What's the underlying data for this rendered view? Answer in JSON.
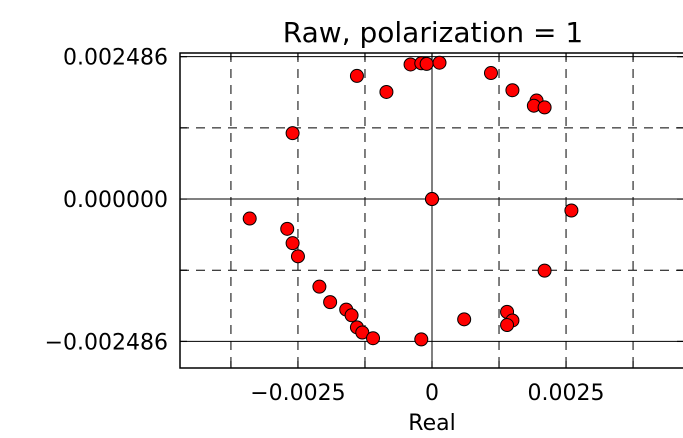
{
  "chart_data": {
    "type": "scatter",
    "title": "Raw,  polarization = 1",
    "xlabel": "Real",
    "ylabel": "",
    "xlim": [
      -0.0047,
      0.0047
    ],
    "ylim": [
      -0.00295,
      0.00255
    ],
    "xticks": [
      -0.0025,
      0,
      0.0025
    ],
    "xtick_labels": [
      "−0.0025",
      "0",
      "0.0025"
    ],
    "yticks": [
      0.002486,
      0.0,
      -0.002486
    ],
    "ytick_labels": [
      "0.002486",
      "0.000000",
      "−0.002486"
    ],
    "minor_xticks": [
      -0.00375,
      -0.00125,
      0.00125,
      0.00375
    ],
    "minor_yticks": [
      0.001243,
      -0.001243
    ],
    "grid": true,
    "grid_style": "dashed",
    "marker_color": "#ff0000",
    "marker_edge": "#000000",
    "series": [
      {
        "x": [
          -0.0004,
          -0.0002,
          -0.0001,
          0.00014,
          -0.00085,
          -0.0014,
          0.0011,
          0.0015,
          0.00195,
          0.0019,
          0.0021,
          -0.0026,
          -0.0034,
          -0.0027,
          -0.0026,
          -0.0025,
          -0.0021,
          -0.0019,
          -0.0016,
          -0.0015,
          -0.0014,
          -0.0013,
          -0.0011,
          -0.0002,
          0.0006,
          0.0014,
          0.0015,
          0.0014,
          0.0021,
          0.0026,
          0.0,
          0.0
        ],
        "y": [
          0.00235,
          0.00237,
          0.00236,
          0.00238,
          0.00187,
          0.00215,
          0.0022,
          0.0019,
          0.00172,
          0.00163,
          0.0016,
          0.00115,
          -0.00034,
          -0.00052,
          -0.00077,
          -0.001,
          -0.00153,
          -0.0018,
          -0.00193,
          -0.00203,
          -0.00224,
          -0.00233,
          -0.00243,
          -0.00245,
          -0.0021,
          -0.00197,
          -0.00212,
          -0.0022,
          -0.00125,
          -0.0002,
          0.0,
          0.0
        ]
      }
    ]
  }
}
